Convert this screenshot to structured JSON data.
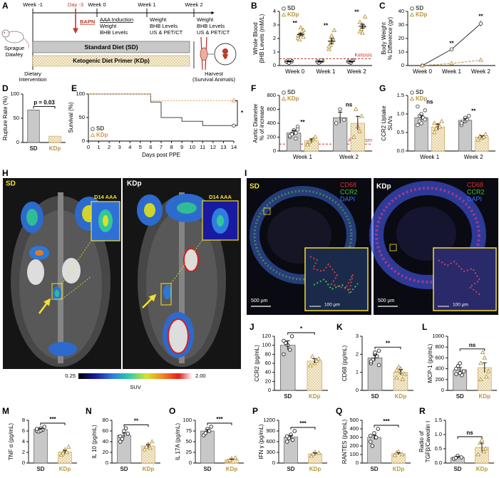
{
  "figure": {
    "A": {
      "panel": "A",
      "weeks": [
        "Week -1",
        "Week 0",
        "Week 1",
        "Week 2"
      ],
      "day": "Day -3",
      "drug": "BAPN",
      "week0": [
        "AAA Induction",
        "Weight",
        "BHB Levels"
      ],
      "week1": [
        "Weight",
        "BHB Levels",
        "US & PET/CT"
      ],
      "week2": [
        "Weight",
        "BHB Levels",
        "US & PET/CT"
      ],
      "animal": [
        "Sprague",
        "Dawley"
      ],
      "diet_sd": "Standard Diet (SD)",
      "diet_kdp": "Ketogenic Diet Primer (KDp)",
      "start": [
        "Dietary",
        "Intervention"
      ],
      "end": [
        "Harvest",
        "(Survival Animals)"
      ]
    },
    "H": {
      "panel": "H",
      "left": "SD",
      "right": "KDp",
      "inset": [
        "D14 AAA",
        "D14 AAA"
      ],
      "colorbar": {
        "min": "0.25",
        "max": "2.00",
        "label": "SUV"
      }
    },
    "I": {
      "panel": "I",
      "left": "SD",
      "right": "KDp",
      "stains": [
        "CD68",
        "CCR2",
        "DAPI"
      ],
      "scale": "500 µm",
      "inset_scale": "100 µm"
    }
  },
  "chart_data": [
    {
      "panel": "B",
      "type": "dot",
      "ylabel": [
        "Whole Blood",
        "βHB Levels (mM/L)"
      ],
      "categories": [
        "Week 0",
        "Week 1",
        "Week 2"
      ],
      "ylim": [
        0,
        4
      ],
      "yticks": [
        0,
        1,
        2,
        3,
        4
      ],
      "legend": "upper left",
      "series": [
        {
          "name": "SD",
          "color": "#444444",
          "marker": "circle",
          "values": [
            0.3,
            0.3,
            0.3
          ],
          "errors": [
            0.03,
            0.03,
            0.03
          ],
          "points": [
            [
              0.3,
              0.2,
              0.35,
              0.25,
              0.4,
              0.3,
              0.2,
              0.3
            ],
            [
              0.3,
              0.25,
              0.35,
              0.2,
              0.4,
              0.3
            ],
            [
              0.3,
              0.2,
              0.4,
              0.25,
              0.35,
              0.3
            ]
          ]
        },
        {
          "name": "KDp",
          "color": "#b8953e",
          "marker": "triangle",
          "values": [
            2.3,
            1.8,
            2.9
          ],
          "errors": [
            0.1,
            0.2,
            0.15
          ],
          "points": [
            [
              2.0,
              2.3,
              2.6,
              1.9,
              2.5,
              2.2,
              2.8,
              2.1
            ],
            [
              1.2,
              1.8,
              2.6,
              1.5,
              2.0,
              1.4,
              2.2
            ],
            [
              2.5,
              3.0,
              3.6,
              2.7,
              2.9,
              3.2,
              2.4
            ]
          ]
        }
      ],
      "reference": {
        "label": "Ketosis",
        "value": 0.5,
        "color": "#c0392b"
      },
      "annotations": [
        {
          "text": "**",
          "category": 0
        },
        {
          "text": "**",
          "category": 1
        },
        {
          "text": "**",
          "category": 2
        }
      ]
    },
    {
      "panel": "C",
      "type": "line",
      "ylabel": [
        "Body Weight",
        "% Difference (gr)"
      ],
      "categories": [
        "Week 0",
        "Week 1",
        "Week 2"
      ],
      "ylim": [
        0,
        40
      ],
      "yticks": [
        0,
        10,
        20,
        30,
        40
      ],
      "legend": "upper left",
      "series": [
        {
          "name": "SD",
          "color": "#444444",
          "marker": "circle",
          "dash": false,
          "values": [
            0,
            12,
            31
          ],
          "errors": [
            0,
            1,
            2
          ]
        },
        {
          "name": "KDp",
          "color": "#b8953e",
          "marker": "triangle",
          "dash": true,
          "values": [
            0,
            1.5,
            4
          ],
          "errors": [
            0,
            0.5,
            1.2
          ]
        }
      ],
      "annotations": [
        {
          "text": "**",
          "category": 1
        },
        {
          "text": "**",
          "category": 2
        }
      ]
    },
    {
      "panel": "D",
      "type": "bar",
      "ylabel": "Rupture Rate (%)",
      "categories": [
        "SD",
        "KDp"
      ],
      "values": [
        67,
        13
      ],
      "colors": [
        "#222222",
        "#b8953e"
      ],
      "fills": [
        "#c8c8c8",
        "#f5ecd3"
      ],
      "hatch": [
        false,
        true
      ],
      "markers": [
        "circle",
        "triangle"
      ],
      "ylim": [
        0,
        100
      ],
      "yticks": [
        0,
        50,
        100
      ],
      "annotations": [
        {
          "text": "p = 0.03"
        }
      ]
    },
    {
      "panel": "E",
      "type": "step",
      "ylabel": "Survival (%)",
      "xlabel": "Days post PPE",
      "xlim": [
        0,
        14
      ],
      "xticks": [
        0,
        1,
        2,
        3,
        4,
        5,
        6,
        7,
        8,
        9,
        10,
        11,
        12,
        13,
        14
      ],
      "ylim": [
        0,
        100
      ],
      "yticks": [
        0,
        50,
        100
      ],
      "legend": "lower left",
      "series": [
        {
          "name": "SD",
          "color": "#444444",
          "marker": "circle",
          "dash": false,
          "x": [
            0,
            6,
            6,
            7,
            7,
            9,
            9,
            11,
            11,
            14
          ],
          "values": [
            100,
            100,
            83,
            83,
            50,
            50,
            42,
            42,
            33,
            33
          ]
        },
        {
          "name": "KDp",
          "color": "#d9954a",
          "marker": "triangle",
          "dash": true,
          "x": [
            0,
            6,
            6,
            14
          ],
          "values": [
            100,
            100,
            86,
            86
          ]
        }
      ],
      "annotations": [
        {
          "text": "*"
        }
      ]
    },
    {
      "panel": "F",
      "type": "grouped_bar",
      "ylabel": [
        "Aortic Diameter",
        "% of increase"
      ],
      "categories": [
        "Week 1",
        "Week 2"
      ],
      "ylim": [
        0,
        800
      ],
      "yticks": [
        0,
        200,
        400,
        600,
        800
      ],
      "legend": "upper left",
      "series": [
        {
          "name": "SD",
          "color": "#444444",
          "fill": "#c8c8c8",
          "hatch": false,
          "marker": "circle",
          "values": [
            260,
            480
          ],
          "errors": [
            30,
            80
          ],
          "points": [
            [
              200,
              300,
              350,
              250,
              180,
              220,
              280,
              310,
              240,
              260
            ],
            [
              400,
              600,
              450
            ]
          ]
        },
        {
          "name": "KDp",
          "color": "#b8953e",
          "fill": "#f5ecd3",
          "hatch": true,
          "marker": "triangle",
          "values": [
            150,
            400
          ],
          "errors": [
            25,
            100
          ],
          "points": [
            [
              100,
              150,
              200,
              130,
              170,
              90
            ],
            [
              200,
              350,
              500,
              600,
              280
            ]
          ]
        }
      ],
      "reference": {
        "label": "Aneurysm",
        "value": 100,
        "color": "#c0392b"
      },
      "annotations": [
        {
          "text": "**",
          "category": 0
        },
        {
          "text": "ns",
          "category": 1
        }
      ]
    },
    {
      "panel": "G",
      "type": "grouped_bar",
      "ylabel": [
        "CCR2 Uptake",
        "SUVs"
      ],
      "categories": [
        "Week 1",
        "Week 2"
      ],
      "ylim": [
        0,
        1.5
      ],
      "yticks": [
        {
          "value": 0,
          "label": "0.0"
        },
        0.5,
        {
          "value": 1,
          "label": "1.0"
        },
        1.5
      ],
      "legend": "upper left",
      "series": [
        {
          "name": "SD",
          "color": "#444444",
          "fill": "#c8c8c8",
          "hatch": false,
          "marker": "circle",
          "values": [
            0.9,
            0.83
          ],
          "errors": [
            0.06,
            0.05
          ],
          "points": [
            [
              0.7,
              1.0,
              1.1,
              0.8,
              0.9,
              1.2,
              0.75,
              0.85,
              0.95
            ],
            [
              0.7,
              0.9,
              0.95,
              0.8,
              0.85,
              0.75,
              0.8
            ]
          ]
        },
        {
          "name": "KDp",
          "color": "#b8953e",
          "fill": "#f5ecd3",
          "hatch": true,
          "marker": "triangle",
          "values": [
            0.65,
            0.38
          ],
          "errors": [
            0.08,
            0.03
          ],
          "points": [
            [
              0.5,
              0.7,
              0.8,
              0.6,
              0.65,
              0.75
            ],
            [
              0.3,
              0.35,
              0.45,
              0.4,
              0.38
            ]
          ]
        }
      ],
      "annotations": [
        {
          "text": "ns",
          "category": 0
        },
        {
          "text": "**",
          "category": 1
        }
      ]
    },
    {
      "panel": "J",
      "type": "bar",
      "ylabel": "CCR2 (pg/mL)",
      "categories": [
        "SD",
        "KDp"
      ],
      "values": [
        100,
        65
      ],
      "errors": [
        10,
        5
      ],
      "points": [
        [
          80,
          100,
          120,
          105,
          90,
          110
        ],
        [
          55,
          60,
          70,
          75,
          65
        ]
      ],
      "colors": [
        "#222222",
        "#b8953e"
      ],
      "fills": [
        "#c8c8c8",
        "#f5ecd3"
      ],
      "hatch": [
        false,
        true
      ],
      "markers": [
        "circle",
        "triangle"
      ],
      "ylim": [
        0,
        120
      ],
      "yticks": [
        0,
        20,
        40,
        60,
        80,
        100,
        120
      ],
      "annotations": [
        {
          "text": "*"
        }
      ]
    },
    {
      "panel": "K",
      "type": "bar",
      "ylabel": "CD68 (pg/mL)",
      "categories": [
        "SD",
        "KDp"
      ],
      "values": [
        1.8,
        1.0
      ],
      "errors": [
        0.15,
        0.15
      ],
      "points": [
        [
          1.5,
          2.0,
          2.2,
          1.7,
          1.9,
          1.6,
          2.1,
          1.4
        ],
        [
          0.7,
          1.2,
          0.9,
          1.3,
          0.6,
          1.1,
          1.0
        ]
      ],
      "colors": [
        "#222222",
        "#b8953e"
      ],
      "fills": [
        "#c8c8c8",
        "#f5ecd3"
      ],
      "hatch": [
        false,
        true
      ],
      "markers": [
        "circle",
        "triangle"
      ],
      "ylim": [
        0,
        3
      ],
      "yticks": [
        0,
        1,
        2,
        3
      ],
      "annotations": [
        {
          "text": "**"
        }
      ]
    },
    {
      "panel": "L",
      "type": "bar",
      "ylabel": "MCP-1 (pg/mL)",
      "categories": [
        "SD",
        "KDp"
      ],
      "values": [
        380,
        420
      ],
      "errors": [
        40,
        90
      ],
      "points": [
        [
          300,
          500,
          350,
          450,
          280,
          400,
          320
        ],
        [
          200,
          600,
          350,
          700,
          250,
          500
        ]
      ],
      "colors": [
        "#222222",
        "#b8953e"
      ],
      "fills": [
        "#c8c8c8",
        "#f5ecd3"
      ],
      "hatch": [
        false,
        true
      ],
      "markers": [
        "circle",
        "triangle"
      ],
      "ylim": [
        0,
        1000
      ],
      "yticks": [
        0,
        200,
        400,
        600,
        800,
        1000
      ],
      "annotations": [
        {
          "text": "ns"
        }
      ]
    },
    {
      "panel": "M",
      "type": "bar",
      "ylabel": "TNF α (pg/mL)",
      "categories": [
        "SD",
        "KDp"
      ],
      "values": [
        6.3,
        2.1
      ],
      "errors": [
        0.2,
        0.3
      ],
      "points": [
        [
          6,
          6.5,
          6.8,
          5.9,
          6.2,
          6.4,
          6.1
        ],
        [
          1.5,
          2.5,
          3,
          1.8,
          2.0
        ]
      ],
      "colors": [
        "#222222",
        "#b8953e"
      ],
      "fills": [
        "#c8c8c8",
        "#f5ecd3"
      ],
      "hatch": [
        false,
        true
      ],
      "markers": [
        "circle",
        "triangle"
      ],
      "ylim": [
        0,
        8
      ],
      "yticks": [
        0,
        2,
        4,
        6,
        8
      ],
      "annotations": [
        {
          "text": "***"
        }
      ]
    },
    {
      "panel": "N",
      "type": "bar",
      "ylabel": "IL 10 (pg/mL)",
      "categories": [
        "SD",
        "KDp"
      ],
      "values": [
        52,
        32
      ],
      "errors": [
        4,
        3
      ],
      "points": [
        [
          40,
          60,
          55,
          45,
          65,
          50
        ],
        [
          25,
          35,
          40,
          30,
          28
        ]
      ],
      "colors": [
        "#222222",
        "#b8953e"
      ],
      "fills": [
        "#c8c8c8",
        "#f5ecd3"
      ],
      "hatch": [
        false,
        true
      ],
      "markers": [
        "circle",
        "triangle"
      ],
      "ylim": [
        0,
        80
      ],
      "yticks": [
        0,
        20,
        40,
        60,
        80
      ],
      "annotations": [
        {
          "text": "**"
        }
      ]
    },
    {
      "panel": "O",
      "type": "bar",
      "ylabel": "IL 17A (pg/mL)",
      "categories": [
        "SD",
        "KDp"
      ],
      "values": [
        75,
        8
      ],
      "errors": [
        3.5,
        1.5
      ],
      "points": [
        [
          65,
          80,
          85,
          70,
          75
        ],
        [
          5,
          10,
          12,
          6
        ]
      ],
      "colors": [
        "#222222",
        "#b8953e"
      ],
      "fills": [
        "#c8c8c8",
        "#f5ecd3"
      ],
      "hatch": [
        false,
        true
      ],
      "markers": [
        "circle",
        "triangle"
      ],
      "ylim": [
        0,
        100
      ],
      "yticks": [
        0,
        25,
        50,
        75,
        100
      ],
      "annotations": [
        {
          "text": "***"
        }
      ]
    },
    {
      "panel": "P",
      "type": "bar",
      "ylabel": "IFN γ (pg/mL)",
      "categories": [
        "SD",
        "KDp"
      ],
      "values": [
        730,
        260
      ],
      "errors": [
        45,
        25
      ],
      "points": [
        [
          600,
          800,
          900,
          700,
          650,
          750
        ],
        [
          200,
          300,
          280,
          250
        ]
      ],
      "colors": [
        "#222222",
        "#b8953e"
      ],
      "fills": [
        "#c8c8c8",
        "#f5ecd3"
      ],
      "hatch": [
        false,
        true
      ],
      "markers": [
        "circle",
        "triangle"
      ],
      "ylim": [
        0,
        1200
      ],
      "yticks": [
        0,
        300,
        600,
        900,
        1200
      ],
      "annotations": [
        {
          "text": "***"
        }
      ]
    },
    {
      "panel": "Q",
      "type": "bar",
      "ylabel": "RANTES (pg/mL)",
      "categories": [
        "SD",
        "KDp"
      ],
      "values": [
        300,
        110
      ],
      "errors": [
        25,
        10
      ],
      "points": [
        [
          250,
          350,
          400,
          200,
          300,
          320
        ],
        [
          90,
          130,
          100,
          120
        ]
      ],
      "colors": [
        "#222222",
        "#b8953e"
      ],
      "fills": [
        "#c8c8c8",
        "#f5ecd3"
      ],
      "hatch": [
        false,
        true
      ],
      "markers": [
        "circle",
        "triangle"
      ],
      "ylim": [
        0,
        500
      ],
      "yticks": [
        0,
        100,
        200,
        300,
        400,
        500
      ],
      "annotations": [
        {
          "text": "***"
        }
      ]
    },
    {
      "panel": "R",
      "type": "bar",
      "ylabel": [
        "Radio of",
        "TGFβ/Caveolin I"
      ],
      "categories": [
        "SD",
        "KDp"
      ],
      "values": [
        0.2,
        0.55
      ],
      "errors": [
        0.03,
        0.15
      ],
      "points": [
        [
          0.15,
          0.25,
          0.2,
          0.18
        ],
        [
          0.3,
          0.8,
          0.5,
          0.7,
          0.4
        ]
      ],
      "colors": [
        "#222222",
        "#b8953e"
      ],
      "fills": [
        "#c8c8c8",
        "#f5ecd3"
      ],
      "hatch": [
        false,
        true
      ],
      "markers": [
        "circle",
        "triangle"
      ],
      "ylim": [
        0,
        1.5
      ],
      "yticks": [
        {
          "value": 0,
          "label": "0.0"
        },
        0.5,
        {
          "value": 1,
          "label": "1.0"
        },
        1.5
      ],
      "annotations": [
        {
          "text": "ns"
        }
      ]
    }
  ]
}
